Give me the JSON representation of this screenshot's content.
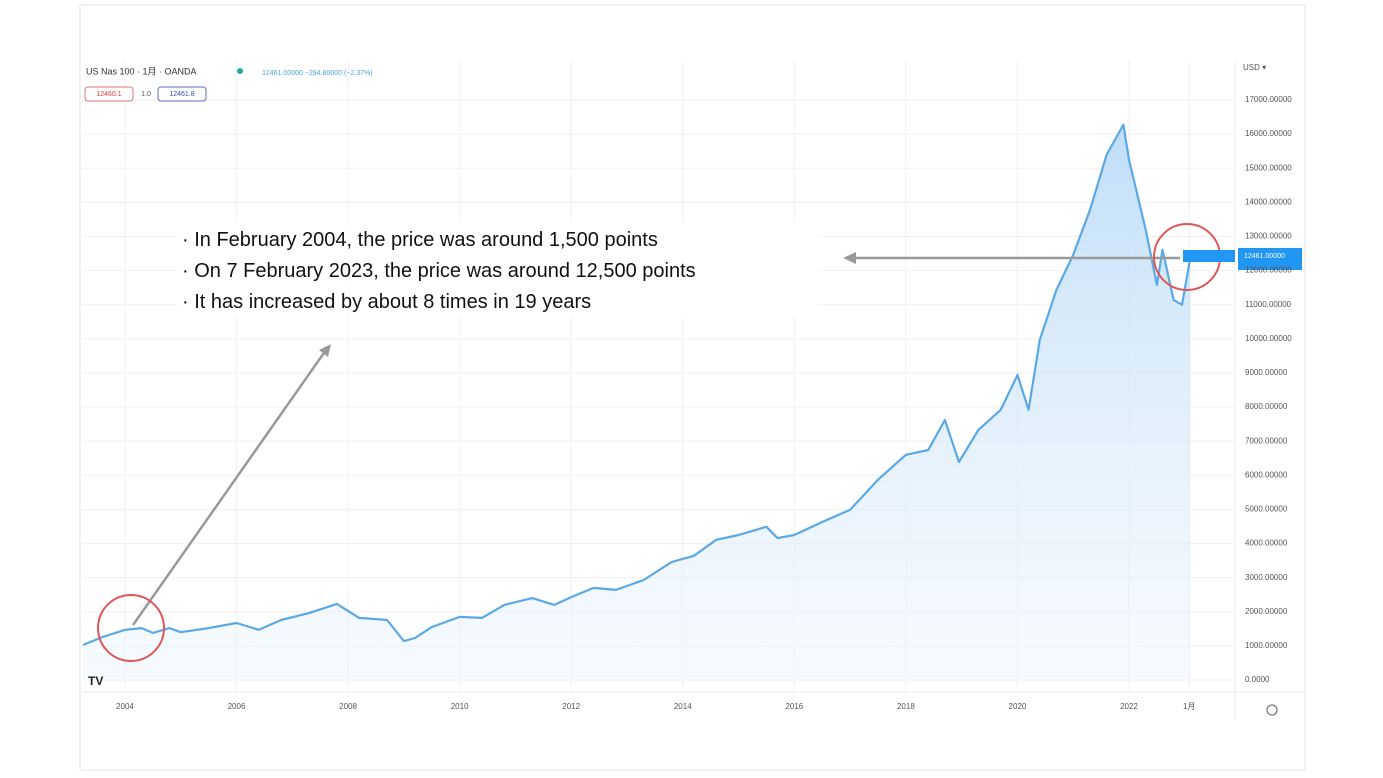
{
  "chart_data": {
    "type": "area",
    "title": "US Nas 100 · 1月 · OANDA",
    "subtitle": "12461.00000 −294.80000 (−2.37%)",
    "bid_label": "12460.1",
    "spread_label": "1.0",
    "ask_label": "12461.8",
    "currency": "USD ▾",
    "last_price_label": "12461.00000",
    "annotations": [
      "· In February 2004, the price was around 1,500 points",
      "· On 7 February 2023, the price was around 12,500 points",
      "· It has increased by about 8 times in 19 years"
    ],
    "x": [
      2003.25,
      2003.6,
      2004.0,
      2004.3,
      2004.5,
      2004.8,
      2005.0,
      2005.5,
      2006.0,
      2006.4,
      2006.8,
      2007.3,
      2007.8,
      2008.2,
      2008.7,
      2009.0,
      2009.2,
      2009.5,
      2010.0,
      2010.4,
      2010.8,
      2011.3,
      2011.7,
      2012.0,
      2012.4,
      2012.8,
      2013.3,
      2013.8,
      2014.2,
      2014.6,
      2015.0,
      2015.5,
      2015.7,
      2016.0,
      2016.5,
      2017.0,
      2017.5,
      2018.0,
      2018.4,
      2018.7,
      2018.95,
      2019.3,
      2019.7,
      2020.0,
      2020.2,
      2020.4,
      2020.7,
      2021.0,
      2021.3,
      2021.6,
      2021.9,
      2022.0,
      2022.3,
      2022.5,
      2022.6,
      2022.8,
      2022.95,
      2023.1
    ],
    "series": [
      {
        "name": "US Nas 100",
        "color": "#5aa9e6",
        "values": [
          1030,
          1260,
          1470,
          1520,
          1380,
          1520,
          1400,
          1520,
          1670,
          1470,
          1760,
          1960,
          2230,
          1820,
          1760,
          1140,
          1230,
          1550,
          1850,
          1820,
          2200,
          2400,
          2200,
          2430,
          2700,
          2640,
          2930,
          3460,
          3640,
          4110,
          4250,
          4490,
          4160,
          4250,
          4630,
          4990,
          5870,
          6600,
          6740,
          7620,
          6390,
          7330,
          7920,
          8940,
          7920,
          9970,
          11440,
          12460,
          13780,
          15400,
          16280,
          15250,
          13200,
          11580,
          12610,
          11140,
          11000,
          12380
        ]
      }
    ],
    "xlim": [
      2003.23,
      2023.9
    ],
    "xticks": [
      2004,
      2006,
      2008,
      2010,
      2012,
      2014,
      2016,
      2018,
      2020,
      2022,
      {
        "value": 2023.08,
        "label": "1月"
      }
    ],
    "ylim": [
      0,
      17000
    ],
    "yticks": [
      {
        "value": 0,
        "label": "0.0000"
      },
      {
        "value": 1000,
        "label": "1000.00000"
      },
      {
        "value": 2000,
        "label": "2000.00000"
      },
      {
        "value": 3000,
        "label": "3000.00000"
      },
      {
        "value": 4000,
        "label": "4000.00000"
      },
      {
        "value": 5000,
        "label": "5000.00000"
      },
      {
        "value": 6000,
        "label": "6000.00000"
      },
      {
        "value": 7000,
        "label": "7000.00000"
      },
      {
        "value": 8000,
        "label": "8000.00000"
      },
      {
        "value": 9000,
        "label": "9000.00000"
      },
      {
        "value": 10000,
        "label": "10000.00000"
      },
      {
        "value": 11000,
        "label": "11000.00000"
      },
      {
        "value": 12000,
        "label": "12000.00000"
      },
      {
        "value": 13000,
        "label": "13000.00000"
      },
      {
        "value": 14000,
        "label": "14000.00000"
      },
      {
        "value": 15000,
        "label": "15000.00000"
      },
      {
        "value": 16000,
        "label": "16000.00000"
      },
      {
        "value": 17000,
        "label": "17000.00000"
      }
    ],
    "grid": true
  }
}
